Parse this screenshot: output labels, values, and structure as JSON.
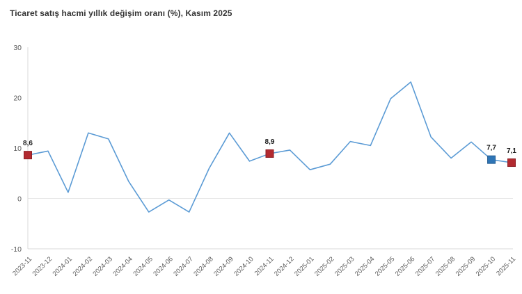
{
  "title": "Ticaret satış hacmi yıllık değişim oranı (%), Kasım 2025",
  "colors": {
    "line": "#5B9BD5",
    "marker_red": "#B22A30",
    "marker_red_border": "#8E1F26",
    "marker_blue": "#2E75B6",
    "marker_blue_border": "#245D92",
    "axis_line": "#D9D9D9",
    "zero_gridline": "#E7E7E7",
    "tick_text": "#595959",
    "data_label_text": "#1A1A1A",
    "title_text": "#333333"
  },
  "chart_data": {
    "type": "line",
    "title": "Ticaret satış hacmi yıllık değişim oranı (%), Kasım 2025",
    "categories": [
      "2023-11",
      "2023-12",
      "2024-01",
      "2024-02",
      "2024-03",
      "2024-04",
      "2024-05",
      "2024-06",
      "2024-07",
      "2024-08",
      "2024-09",
      "2024-10",
      "2024-11",
      "2024-12",
      "2025-01",
      "2025-02",
      "2025-03",
      "2025-04",
      "2025-05",
      "2025-06",
      "2025-07",
      "2025-08",
      "2025-09",
      "2025-10",
      "2025-11"
    ],
    "values": [
      8.6,
      9.4,
      1.2,
      13.0,
      11.8,
      3.4,
      -2.7,
      -0.3,
      -2.7,
      6.0,
      13.0,
      7.4,
      8.9,
      9.6,
      5.7,
      6.8,
      11.3,
      10.5,
      19.8,
      23.1,
      12.2,
      8.0,
      11.2,
      7.7,
      7.1
    ],
    "labeled_points": [
      {
        "index": 0,
        "category": "2023-11",
        "label": "8,6",
        "marker": "red"
      },
      {
        "index": 12,
        "category": "2024-11",
        "label": "8,9",
        "marker": "red"
      },
      {
        "index": 23,
        "category": "2025-10",
        "label": "7,7",
        "marker": "blue"
      },
      {
        "index": 24,
        "category": "2025-11",
        "label": "7,1",
        "marker": "red"
      }
    ],
    "xlabel": "",
    "ylabel": "",
    "ylim": [
      -10,
      30
    ],
    "yticks": [
      30,
      20,
      10,
      0,
      -10
    ],
    "grid": "zero-line-only",
    "legend": "none"
  }
}
